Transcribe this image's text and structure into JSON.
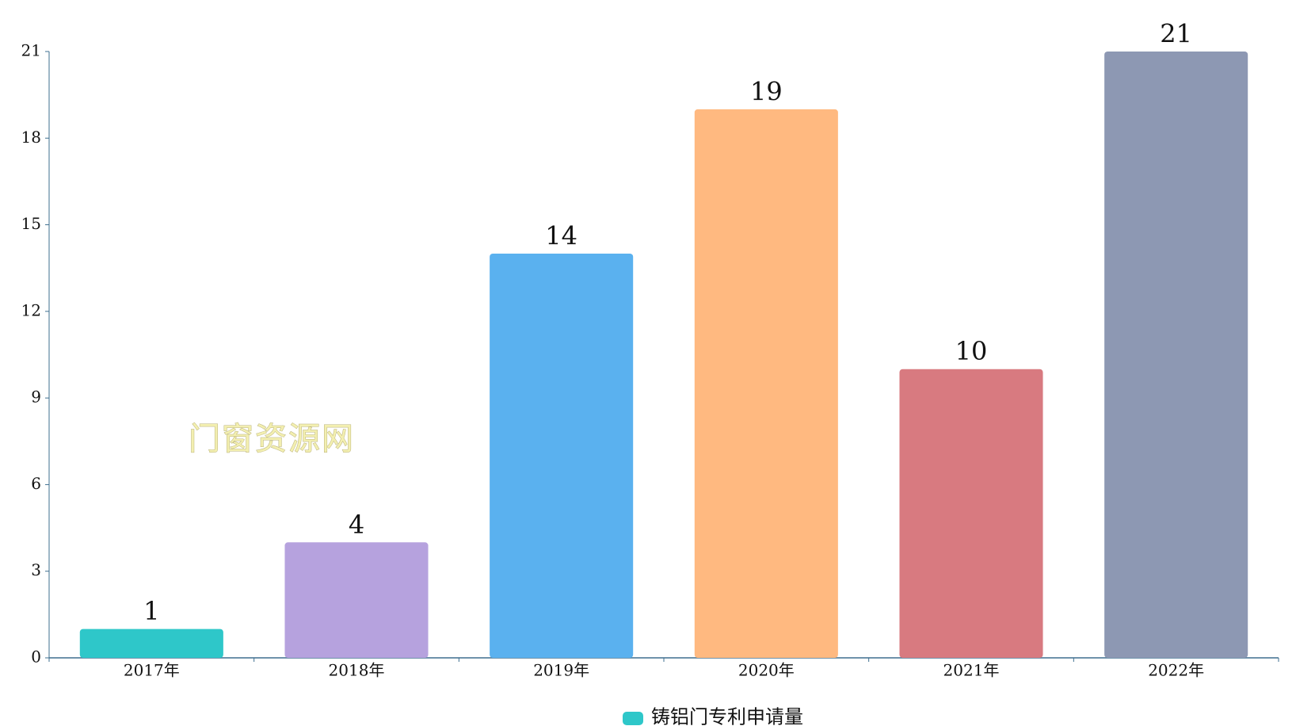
{
  "chart_data": {
    "type": "bar",
    "categories": [
      "2017年",
      "2018年",
      "2019年",
      "2020年",
      "2021年",
      "2022年"
    ],
    "series": [
      {
        "name": "铸铝门专利申请量",
        "color": "#2ec7c9",
        "values": [
          1,
          4,
          14,
          19,
          10,
          21
        ]
      }
    ],
    "bar_colors": [
      "#2ec7c9",
      "#b6a2de",
      "#5ab1ef",
      "#ffb980",
      "#d87a80",
      "#8d98b3"
    ],
    "ylim": [
      0,
      21
    ],
    "yticks": [
      0,
      3,
      6,
      9,
      12,
      15,
      18,
      21
    ],
    "grid": false,
    "legend": "bottom",
    "annotations": [
      "门窗资源网"
    ]
  }
}
